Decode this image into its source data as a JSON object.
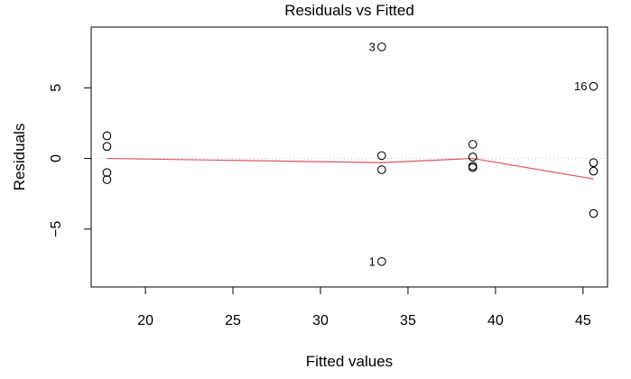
{
  "chart_data": {
    "type": "scatter",
    "title": "Residuals vs Fitted",
    "xlabel": "Fitted values",
    "ylabel": "Residuals",
    "xlim": [
      16.9,
      46.4
    ],
    "ylim": [
      -9.1,
      9.3
    ],
    "x_ticks": [
      20,
      25,
      30,
      35,
      40,
      45
    ],
    "y_ticks": [
      -5,
      0,
      5
    ],
    "x_tick_labels": [
      "20",
      "25",
      "30",
      "35",
      "40",
      "45"
    ],
    "y_tick_labels": [
      "−5",
      "0",
      "5"
    ],
    "reference_line_y": 0,
    "points": [
      {
        "x": 17.8,
        "y": 1.6
      },
      {
        "x": 17.8,
        "y": 0.85
      },
      {
        "x": 17.8,
        "y": -1.0
      },
      {
        "x": 17.8,
        "y": -1.5
      },
      {
        "x": 33.5,
        "y": 7.9,
        "label": "3"
      },
      {
        "x": 33.5,
        "y": 0.2
      },
      {
        "x": 33.5,
        "y": -0.8
      },
      {
        "x": 33.5,
        "y": -7.3,
        "label": "1"
      },
      {
        "x": 38.7,
        "y": 1.0
      },
      {
        "x": 38.7,
        "y": 0.1
      },
      {
        "x": 38.7,
        "y": -0.55
      },
      {
        "x": 38.7,
        "y": -0.65
      },
      {
        "x": 45.6,
        "y": 5.1,
        "label": "16"
      },
      {
        "x": 45.6,
        "y": -0.3
      },
      {
        "x": 45.6,
        "y": -0.9
      },
      {
        "x": 45.6,
        "y": -3.9
      }
    ],
    "smooth_line": [
      {
        "x": 17.8,
        "y": 0.0
      },
      {
        "x": 33.5,
        "y": -0.3
      },
      {
        "x": 38.7,
        "y": 0.0
      },
      {
        "x": 45.6,
        "y": -1.45
      }
    ],
    "colors": {
      "smooth": "#DF536B",
      "reference": "#BEBEBE",
      "points": "#000000",
      "box": "#000000"
    }
  }
}
